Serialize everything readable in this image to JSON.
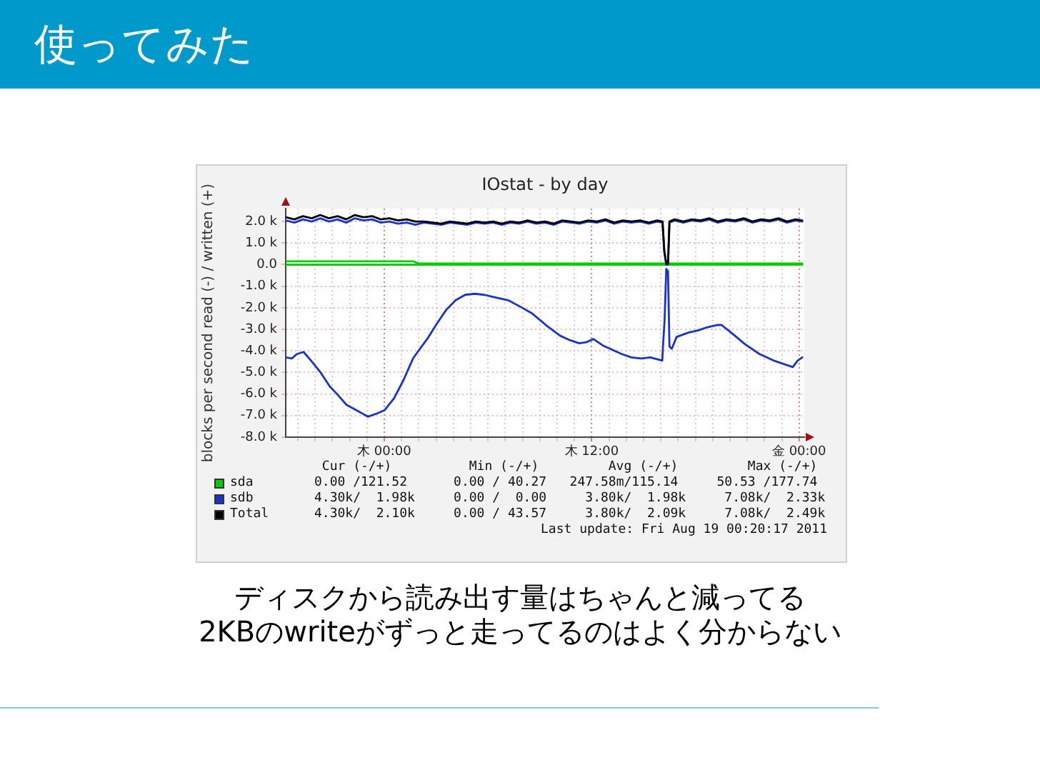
{
  "chart_data": {
    "type": "line",
    "title": "使ってみた",
    "subtitle": "IOstat - by day",
    "ylabel": "blocks per second read (-) / written (+)",
    "annotations": [
      "Cur (-/+)          Min (-/+)         Avg (-/+)         Max (-/+)",
      "0.00 /121.52      0.00 / 40.27   247.58m/115.14     50.53 /177.74",
      "4.30k/  1.98k     0.00 /  0.00     3.80k/  1.98k     7.08k/  2.33k",
      "4.30k/  2.10k     0.00 / 43.57     3.80k/  2.09k     7.08k/  2.49k",
      "Last update: Fri Aug 19 00:20:17 2011",
      "ディスクから読み出す量はちゃんと減ってる",
      "2KBのwriteがずっと走ってるのはよく分からない"
    ],
    "xlim": [
      "2011-08-17T18:18",
      "2011-08-19T00:18"
    ],
    "xticks": [
      {
        "value": "2011-08-17T19:00",
        "label": null
      },
      {
        "value": "2011-08-17T20:00",
        "label": null
      },
      {
        "value": "2011-08-17T21:00",
        "label": null
      },
      {
        "value": "2011-08-17T22:00",
        "label": null
      },
      {
        "value": "2011-08-17T23:00",
        "label": null
      },
      {
        "value": "2011-08-18T00:00",
        "label": "木 00:00"
      },
      {
        "value": "2011-08-18T01:00",
        "label": null
      },
      {
        "value": "2011-08-18T02:00",
        "label": null
      },
      {
        "value": "2011-08-18T03:00",
        "label": null
      },
      {
        "value": "2011-08-18T04:00",
        "label": null
      },
      {
        "value": "2011-08-18T05:00",
        "label": null
      },
      {
        "value": "2011-08-18T06:00",
        "label": null
      },
      {
        "value": "2011-08-18T07:00",
        "label": null
      },
      {
        "value": "2011-08-18T08:00",
        "label": null
      },
      {
        "value": "2011-08-18T09:00",
        "label": null
      },
      {
        "value": "2011-08-18T10:00",
        "label": null
      },
      {
        "value": "2011-08-18T11:00",
        "label": null
      },
      {
        "value": "2011-08-18T12:00",
        "label": "木 12:00"
      },
      {
        "value": "2011-08-18T13:00",
        "label": null
      },
      {
        "value": "2011-08-18T14:00",
        "label": null
      },
      {
        "value": "2011-08-18T15:00",
        "label": null
      },
      {
        "value": "2011-08-18T16:00",
        "label": null
      },
      {
        "value": "2011-08-18T17:00",
        "label": null
      },
      {
        "value": "2011-08-18T18:00",
        "label": null
      },
      {
        "value": "2011-08-18T19:00",
        "label": null
      },
      {
        "value": "2011-08-18T20:00",
        "label": null
      },
      {
        "value": "2011-08-18T21:00",
        "label": null
      },
      {
        "value": "2011-08-18T22:00",
        "label": null
      },
      {
        "value": "2011-08-18T23:00",
        "label": null
      },
      {
        "value": "2011-08-19T00:00",
        "label": "金 00:00"
      }
    ],
    "ylim": [
      -8000,
      2600
    ],
    "yticks": [
      {
        "value": -8000,
        "label": "-8.0 k"
      },
      {
        "value": -7000,
        "label": "-7.0 k"
      },
      {
        "value": -6000,
        "label": "-6.0 k"
      },
      {
        "value": -5000,
        "label": "-5.0 k"
      },
      {
        "value": -4000,
        "label": "-4.0 k"
      },
      {
        "value": -3000,
        "label": "-3.0 k"
      },
      {
        "value": -2000,
        "label": "-2.0 k"
      },
      {
        "value": -1000,
        "label": "-1.0 k"
      },
      {
        "value": 0,
        "label": "0.0"
      },
      {
        "value": 1000,
        "label": "1.0 k"
      },
      {
        "value": 2000,
        "label": "2.0 k"
      }
    ],
    "grid": true,
    "legend": "bottom",
    "series": [
      {
        "name": "sda",
        "color": "#00cc00",
        "x": [
          "2011-08-17T18:18",
          "2011-08-18T01:42",
          "2011-08-18T02:00",
          "2011-08-19T00:11"
        ],
        "values": [
          150,
          150,
          50,
          50
        ]
      },
      {
        "color": "#00cc00",
        "x": [
          "2011-08-17T18:18",
          "2011-08-19T00:11"
        ],
        "values": [
          0,
          0
        ]
      },
      {
        "name": "sdb",
        "color": "#1a33cc",
        "x": [
          "2011-08-17T18:18",
          "2011-08-17T18:48",
          "2011-08-17T19:18",
          "2011-08-17T19:48",
          "2011-08-17T20:18",
          "2011-08-17T20:48",
          "2011-08-17T21:18",
          "2011-08-17T21:48",
          "2011-08-17T22:18",
          "2011-08-17T22:48",
          "2011-08-17T23:18",
          "2011-08-17T23:48",
          "2011-08-18T00:18",
          "2011-08-18T00:48",
          "2011-08-18T01:18",
          "2011-08-18T01:48",
          "2011-08-18T02:18",
          "2011-08-18T02:48",
          "2011-08-18T03:18",
          "2011-08-18T03:48",
          "2011-08-18T04:18",
          "2011-08-18T04:48",
          "2011-08-18T05:18",
          "2011-08-18T05:48",
          "2011-08-18T06:18",
          "2011-08-18T06:48",
          "2011-08-18T07:18",
          "2011-08-18T07:48",
          "2011-08-18T08:18",
          "2011-08-18T08:48",
          "2011-08-18T09:18",
          "2011-08-18T09:48",
          "2011-08-18T10:18",
          "2011-08-18T10:48",
          "2011-08-18T11:18",
          "2011-08-18T11:48",
          "2011-08-18T12:18",
          "2011-08-18T12:48",
          "2011-08-18T13:18",
          "2011-08-18T13:48",
          "2011-08-18T14:18",
          "2011-08-18T14:48",
          "2011-08-18T15:18",
          "2011-08-18T15:48",
          "2011-08-18T16:06",
          "2011-08-18T16:12",
          "2011-08-18T16:19",
          "2011-08-18T16:25",
          "2011-08-18T16:30",
          "2011-08-18T16:48",
          "2011-08-18T17:18",
          "2011-08-18T17:48",
          "2011-08-18T18:18",
          "2011-08-18T18:48",
          "2011-08-18T19:18",
          "2011-08-18T19:48",
          "2011-08-18T20:18",
          "2011-08-18T20:48",
          "2011-08-18T21:18",
          "2011-08-18T21:48",
          "2011-08-18T22:18",
          "2011-08-18T22:48",
          "2011-08-18T23:18",
          "2011-08-18T23:48",
          "2011-08-19T00:11"
        ],
        "values": [
          2050,
          1950,
          2100,
          2000,
          2150,
          2000,
          2100,
          1950,
          2150,
          2050,
          2100,
          1950,
          2000,
          1900,
          1950,
          1850,
          1950,
          1900,
          1850,
          1950,
          1900,
          1850,
          1950,
          1900,
          1950,
          1850,
          1950,
          1900,
          2000,
          1900,
          1950,
          1850,
          2000,
          1950,
          1900,
          2000,
          1950,
          2050,
          1900,
          2000,
          1950,
          2000,
          1900,
          2000,
          1950,
          600,
          0,
          0,
          1950,
          2050,
          1950,
          2050,
          2000,
          2100,
          1950,
          2050,
          2000,
          2100,
          1950,
          2050,
          2000,
          2100,
          1950,
          2050,
          2000
        ]
      },
      {
        "color": "#1a33cc",
        "x": [
          "2011-08-17T18:18",
          "2011-08-17T18:40",
          "2011-08-17T18:56",
          "2011-08-17T19:20",
          "2011-08-17T19:46",
          "2011-08-17T20:19",
          "2011-08-17T20:51",
          "2011-08-17T21:16",
          "2011-08-17T21:49",
          "2011-08-17T22:30",
          "2011-08-17T23:03",
          "2011-08-17T23:36",
          "2011-08-18T00:01",
          "2011-08-18T00:34",
          "2011-08-18T01:07",
          "2011-08-18T01:40",
          "2011-08-18T02:04",
          "2011-08-18T02:29",
          "2011-08-18T03:02",
          "2011-08-18T03:35",
          "2011-08-18T04:08",
          "2011-08-18T04:41",
          "2011-08-18T05:14",
          "2011-08-18T05:47",
          "2011-08-18T06:20",
          "2011-08-18T07:10",
          "2011-08-18T07:59",
          "2011-08-18T08:32",
          "2011-08-18T09:21",
          "2011-08-18T10:11",
          "2011-08-18T10:44",
          "2011-08-18T11:17",
          "2011-08-18T11:41",
          "2011-08-18T12:06",
          "2011-08-18T12:39",
          "2011-08-18T13:12",
          "2011-08-18T13:45",
          "2011-08-18T14:18",
          "2011-08-18T14:51",
          "2011-08-18T15:24",
          "2011-08-18T16:05",
          "2011-08-18T16:08",
          "2011-08-18T16:13",
          "2011-08-18T16:19",
          "2011-08-18T16:25",
          "2011-08-18T16:30",
          "2011-08-18T16:38",
          "2011-08-18T16:55",
          "2011-08-18T17:36",
          "2011-08-18T18:09",
          "2011-08-18T18:42",
          "2011-08-18T19:15",
          "2011-08-18T19:31",
          "2011-08-18T20:04",
          "2011-08-18T20:53",
          "2011-08-18T21:43",
          "2011-08-18T22:32",
          "2011-08-18T23:05",
          "2011-08-18T23:38",
          "2011-08-18T23:55",
          "2011-08-19T00:11"
        ],
        "values": [
          -4300,
          -4350,
          -4150,
          -4050,
          -4450,
          -5000,
          -5650,
          -6000,
          -6500,
          -6800,
          -7050,
          -6900,
          -6750,
          -6200,
          -5350,
          -4350,
          -3900,
          -3450,
          -2750,
          -2100,
          -1650,
          -1400,
          -1350,
          -1400,
          -1500,
          -1650,
          -2000,
          -2250,
          -2800,
          -3300,
          -3500,
          -3650,
          -3600,
          -3450,
          -3750,
          -3950,
          -4150,
          -4300,
          -4350,
          -4300,
          -4450,
          -3700,
          -2600,
          -200,
          -300,
          -3800,
          -3900,
          -3350,
          -3150,
          -3050,
          -2900,
          -2800,
          -2800,
          -3150,
          -3700,
          -4150,
          -4450,
          -4600,
          -4750,
          -4450,
          -4300
        ]
      },
      {
        "name": "Total",
        "color": "#000000",
        "x": [
          "2011-08-17T18:18",
          "2011-08-17T18:48",
          "2011-08-17T19:18",
          "2011-08-17T19:48",
          "2011-08-17T20:18",
          "2011-08-17T20:48",
          "2011-08-17T21:18",
          "2011-08-17T21:48",
          "2011-08-17T22:18",
          "2011-08-17T22:48",
          "2011-08-17T23:18",
          "2011-08-17T23:48",
          "2011-08-18T00:18",
          "2011-08-18T00:48",
          "2011-08-18T01:18",
          "2011-08-18T01:48",
          "2011-08-18T02:18",
          "2011-08-18T02:48",
          "2011-08-18T03:18",
          "2011-08-18T03:48",
          "2011-08-18T04:18",
          "2011-08-18T04:48",
          "2011-08-18T05:18",
          "2011-08-18T05:48",
          "2011-08-18T06:18",
          "2011-08-18T06:48",
          "2011-08-18T07:18",
          "2011-08-18T07:48",
          "2011-08-18T08:18",
          "2011-08-18T08:48",
          "2011-08-18T09:18",
          "2011-08-18T09:48",
          "2011-08-18T10:18",
          "2011-08-18T10:48",
          "2011-08-18T11:18",
          "2011-08-18T11:48",
          "2011-08-18T12:18",
          "2011-08-18T12:48",
          "2011-08-18T13:18",
          "2011-08-18T13:48",
          "2011-08-18T14:18",
          "2011-08-18T14:48",
          "2011-08-18T15:18",
          "2011-08-18T15:48",
          "2011-08-18T16:06",
          "2011-08-18T16:12",
          "2011-08-18T16:19",
          "2011-08-18T16:25",
          "2011-08-18T16:30",
          "2011-08-18T16:48",
          "2011-08-18T17:18",
          "2011-08-18T17:48",
          "2011-08-18T18:18",
          "2011-08-18T18:48",
          "2011-08-18T19:18",
          "2011-08-18T19:48",
          "2011-08-18T20:18",
          "2011-08-18T20:48",
          "2011-08-18T21:18",
          "2011-08-18T21:48",
          "2011-08-18T22:18",
          "2011-08-18T22:48",
          "2011-08-18T23:18",
          "2011-08-18T23:48",
          "2011-08-19T00:11"
        ],
        "values": [
          2200,
          2100,
          2250,
          2150,
          2300,
          2150,
          2250,
          2100,
          2300,
          2200,
          2250,
          2100,
          2150,
          2050,
          2100,
          2000,
          2000,
          1950,
          1900,
          2000,
          1950,
          1900,
          2000,
          1950,
          2000,
          1900,
          2000,
          1950,
          2050,
          1950,
          2000,
          1900,
          2050,
          2000,
          1950,
          2050,
          2000,
          2100,
          1950,
          2050,
          2000,
          2050,
          1950,
          2050,
          2000,
          650,
          50,
          50,
          2000,
          2100,
          2000,
          2100,
          2050,
          2150,
          2000,
          2100,
          2050,
          2150,
          2000,
          2100,
          2050,
          2150,
          2000,
          2100,
          2050
        ]
      }
    ]
  }
}
